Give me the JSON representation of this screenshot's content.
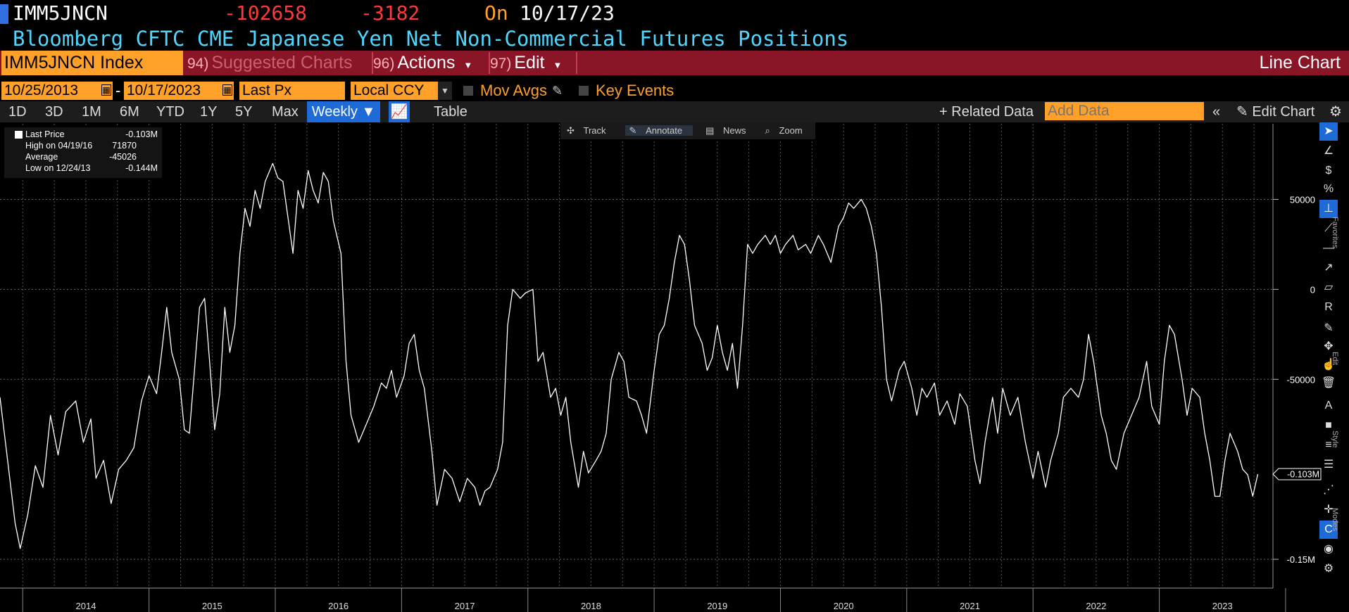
{
  "header": {
    "ticker": "IMM5JNCN",
    "last_value": "-102658",
    "change": "-3182",
    "on_label": "On",
    "on_date": "10/17/23",
    "description": "Bloomberg CFTC CME Japanese Yen Net Non-Commercial Futures Positions"
  },
  "menu": {
    "security": "IMM5JNCN Index",
    "suggested_num": "94)",
    "suggested": "Suggested Charts",
    "actions_num": "96)",
    "actions": "Actions",
    "edit_num": "97)",
    "edit": "Edit",
    "chart_type": "Line Chart"
  },
  "options": {
    "start_date": "10/25/2013",
    "dash": "-",
    "end_date": "10/17/2023",
    "field": "Last Px",
    "currency": "Local CCY",
    "mov_avgs": "Mov Avgs",
    "key_events": "Key Events"
  },
  "ranges": {
    "items": [
      "1D",
      "3D",
      "1M",
      "6M",
      "YTD",
      "1Y",
      "5Y",
      "Max"
    ],
    "frequency": "Weekly",
    "table": "Table",
    "related": "Related Data",
    "add_data_placeholder": "Add Data",
    "edit_chart": "Edit Chart"
  },
  "chart_toolbar": {
    "track": "Track",
    "annotate": "Annotate",
    "news": "News",
    "zoom": "Zoom"
  },
  "legend": {
    "last_label": "Last Price",
    "last_value": "-0.103M",
    "high_label": "High on 04/19/16",
    "high_value": "71870",
    "avg_label": "Average",
    "avg_value": "-45026",
    "low_label": "Low on 12/24/13",
    "low_value": "-0.144M"
  },
  "side_labels": {
    "favorites": "Favorites",
    "edit": "Edit",
    "style": "Style",
    "modes": "Modes"
  },
  "colors": {
    "line": "#ffffff",
    "accent": "#ffa028",
    "menu_bar": "#8a1526",
    "selected": "#1e6ad6",
    "negative": "#ff3a3a",
    "title": "#4fd6ff"
  },
  "chart_data": {
    "type": "line",
    "series": [
      {
        "values": [
          [
            2013.82,
            -60000
          ],
          [
            2013.88,
            -95000
          ],
          [
            2013.94,
            -130000
          ],
          [
            2013.98,
            -144000
          ],
          [
            2014.04,
            -125000
          ],
          [
            2014.1,
            -98000
          ],
          [
            2014.16,
            -110000
          ],
          [
            2014.22,
            -70000
          ],
          [
            2014.28,
            -92000
          ],
          [
            2014.34,
            -68000
          ],
          [
            2014.42,
            -62000
          ],
          [
            2014.48,
            -85000
          ],
          [
            2014.54,
            -72000
          ],
          [
            2014.58,
            -105000
          ],
          [
            2014.64,
            -95000
          ],
          [
            2014.7,
            -119000
          ],
          [
            2014.76,
            -100000
          ],
          [
            2014.82,
            -95000
          ],
          [
            2014.88,
            -88000
          ],
          [
            2014.94,
            -62000
          ],
          [
            2015.0,
            -48000
          ],
          [
            2015.06,
            -58000
          ],
          [
            2015.1,
            -35000
          ],
          [
            2015.14,
            -10000
          ],
          [
            2015.18,
            -35000
          ],
          [
            2015.24,
            -50000
          ],
          [
            2015.28,
            -78000
          ],
          [
            2015.32,
            -80000
          ],
          [
            2015.36,
            -45000
          ],
          [
            2015.4,
            -10000
          ],
          [
            2015.44,
            -5000
          ],
          [
            2015.48,
            -40000
          ],
          [
            2015.52,
            -78000
          ],
          [
            2015.56,
            -58000
          ],
          [
            2015.6,
            -10000
          ],
          [
            2015.64,
            -35000
          ],
          [
            2015.68,
            -20000
          ],
          [
            2015.72,
            20000
          ],
          [
            2015.76,
            45000
          ],
          [
            2015.8,
            35000
          ],
          [
            2015.84,
            55000
          ],
          [
            2015.88,
            45000
          ],
          [
            2015.92,
            60000
          ],
          [
            2015.98,
            70000
          ],
          [
            2016.02,
            62000
          ],
          [
            2016.06,
            60000
          ],
          [
            2016.1,
            40000
          ],
          [
            2016.14,
            20000
          ],
          [
            2016.18,
            55000
          ],
          [
            2016.22,
            45000
          ],
          [
            2016.26,
            66000
          ],
          [
            2016.3,
            55000
          ],
          [
            2016.34,
            48000
          ],
          [
            2016.38,
            65000
          ],
          [
            2016.42,
            60000
          ],
          [
            2016.46,
            38000
          ],
          [
            2016.52,
            20000
          ],
          [
            2016.56,
            -40000
          ],
          [
            2016.6,
            -70000
          ],
          [
            2016.66,
            -85000
          ],
          [
            2016.72,
            -75000
          ],
          [
            2016.78,
            -65000
          ],
          [
            2016.84,
            -52000
          ],
          [
            2016.88,
            -55000
          ],
          [
            2016.92,
            -45000
          ],
          [
            2016.96,
            -60000
          ],
          [
            2017.02,
            -48000
          ],
          [
            2017.06,
            -30000
          ],
          [
            2017.1,
            -25000
          ],
          [
            2017.14,
            -45000
          ],
          [
            2017.18,
            -55000
          ],
          [
            2017.24,
            -90000
          ],
          [
            2017.28,
            -120000
          ],
          [
            2017.34,
            -100000
          ],
          [
            2017.4,
            -105000
          ],
          [
            2017.46,
            -118000
          ],
          [
            2017.52,
            -105000
          ],
          [
            2017.58,
            -110000
          ],
          [
            2017.62,
            -120000
          ],
          [
            2017.66,
            -112000
          ],
          [
            2017.7,
            -110000
          ],
          [
            2017.76,
            -100000
          ],
          [
            2017.8,
            -85000
          ],
          [
            2017.84,
            -20000
          ],
          [
            2017.88,
            0
          ],
          [
            2017.94,
            -5000
          ],
          [
            2017.98,
            -2000
          ],
          [
            2018.04,
            0
          ],
          [
            2018.08,
            -40000
          ],
          [
            2018.12,
            -35000
          ],
          [
            2018.18,
            -60000
          ],
          [
            2018.22,
            -55000
          ],
          [
            2018.26,
            -70000
          ],
          [
            2018.3,
            -60000
          ],
          [
            2018.34,
            -85000
          ],
          [
            2018.4,
            -110000
          ],
          [
            2018.44,
            -90000
          ],
          [
            2018.48,
            -102000
          ],
          [
            2018.54,
            -95000
          ],
          [
            2018.58,
            -90000
          ],
          [
            2018.62,
            -80000
          ],
          [
            2018.66,
            -50000
          ],
          [
            2018.72,
            -35000
          ],
          [
            2018.76,
            -40000
          ],
          [
            2018.8,
            -60000
          ],
          [
            2018.86,
            -62000
          ],
          [
            2018.9,
            -70000
          ],
          [
            2018.94,
            -80000
          ],
          [
            2019.0,
            -45000
          ],
          [
            2019.04,
            -25000
          ],
          [
            2019.08,
            -20000
          ],
          [
            2019.12,
            -5000
          ],
          [
            2019.16,
            15000
          ],
          [
            2019.2,
            30000
          ],
          [
            2019.24,
            25000
          ],
          [
            2019.28,
            5000
          ],
          [
            2019.32,
            -20000
          ],
          [
            2019.38,
            -30000
          ],
          [
            2019.42,
            -45000
          ],
          [
            2019.46,
            -38000
          ],
          [
            2019.5,
            -20000
          ],
          [
            2019.54,
            -35000
          ],
          [
            2019.58,
            -45000
          ],
          [
            2019.62,
            -30000
          ],
          [
            2019.66,
            -55000
          ],
          [
            2019.7,
            -20000
          ],
          [
            2019.74,
            25000
          ],
          [
            2019.78,
            20000
          ],
          [
            2019.82,
            25000
          ],
          [
            2019.88,
            30000
          ],
          [
            2019.92,
            25000
          ],
          [
            2019.96,
            30000
          ],
          [
            2020.0,
            20000
          ],
          [
            2020.04,
            25000
          ],
          [
            2020.1,
            30000
          ],
          [
            2020.14,
            22000
          ],
          [
            2020.2,
            25000
          ],
          [
            2020.24,
            20000
          ],
          [
            2020.3,
            30000
          ],
          [
            2020.34,
            25000
          ],
          [
            2020.4,
            15000
          ],
          [
            2020.46,
            35000
          ],
          [
            2020.5,
            40000
          ],
          [
            2020.54,
            48000
          ],
          [
            2020.58,
            45000
          ],
          [
            2020.64,
            50000
          ],
          [
            2020.68,
            45000
          ],
          [
            2020.72,
            35000
          ],
          [
            2020.76,
            20000
          ],
          [
            2020.8,
            -10000
          ],
          [
            2020.84,
            -50000
          ],
          [
            2020.88,
            -62000
          ],
          [
            2020.94,
            -45000
          ],
          [
            2020.98,
            -40000
          ],
          [
            2021.04,
            -55000
          ],
          [
            2021.08,
            -70000
          ],
          [
            2021.12,
            -55000
          ],
          [
            2021.16,
            -60000
          ],
          [
            2021.22,
            -52000
          ],
          [
            2021.26,
            -70000
          ],
          [
            2021.32,
            -62000
          ],
          [
            2021.38,
            -75000
          ],
          [
            2021.42,
            -58000
          ],
          [
            2021.48,
            -65000
          ],
          [
            2021.54,
            -95000
          ],
          [
            2021.58,
            -108000
          ],
          [
            2021.62,
            -85000
          ],
          [
            2021.68,
            -60000
          ],
          [
            2021.72,
            -80000
          ],
          [
            2021.76,
            -55000
          ],
          [
            2021.82,
            -70000
          ],
          [
            2021.88,
            -60000
          ],
          [
            2021.94,
            -85000
          ],
          [
            2022.0,
            -105000
          ],
          [
            2022.04,
            -90000
          ],
          [
            2022.1,
            -110000
          ],
          [
            2022.14,
            -95000
          ],
          [
            2022.2,
            -80000
          ],
          [
            2022.24,
            -60000
          ],
          [
            2022.3,
            -55000
          ],
          [
            2022.36,
            -60000
          ],
          [
            2022.4,
            -50000
          ],
          [
            2022.44,
            -25000
          ],
          [
            2022.48,
            -40000
          ],
          [
            2022.54,
            -70000
          ],
          [
            2022.58,
            -80000
          ],
          [
            2022.62,
            -95000
          ],
          [
            2022.66,
            -100000
          ],
          [
            2022.72,
            -80000
          ],
          [
            2022.78,
            -70000
          ],
          [
            2022.84,
            -60000
          ],
          [
            2022.9,
            -40000
          ],
          [
            2022.94,
            -65000
          ],
          [
            2023.0,
            -75000
          ],
          [
            2023.04,
            -40000
          ],
          [
            2023.08,
            -20000
          ],
          [
            2023.12,
            -25000
          ],
          [
            2023.18,
            -50000
          ],
          [
            2023.22,
            -70000
          ],
          [
            2023.26,
            -55000
          ],
          [
            2023.32,
            -60000
          ],
          [
            2023.36,
            -80000
          ],
          [
            2023.4,
            -95000
          ],
          [
            2023.44,
            -115000
          ],
          [
            2023.48,
            -115000
          ],
          [
            2023.52,
            -95000
          ],
          [
            2023.56,
            -80000
          ],
          [
            2023.62,
            -90000
          ],
          [
            2023.66,
            -100000
          ],
          [
            2023.7,
            -103000
          ],
          [
            2023.74,
            -115000
          ],
          [
            2023.78,
            -102658
          ]
        ]
      }
    ],
    "x_ticks": [
      "2014",
      "2015",
      "2016",
      "2017",
      "2018",
      "2019",
      "2020",
      "2021",
      "2022",
      "2023"
    ],
    "y_ticks": [
      {
        "value": 50000,
        "label": "50000"
      },
      {
        "value": 0,
        "label": "0"
      },
      {
        "value": -50000,
        "label": "-50000"
      },
      {
        "value": -150000,
        "label": "-0.15M"
      }
    ],
    "last_marker": {
      "value": -102658,
      "label": "-0.103M"
    },
    "xlim": [
      2013.82,
      2023.9
    ],
    "ylim": [
      -166000,
      92000
    ],
    "grid": true
  }
}
